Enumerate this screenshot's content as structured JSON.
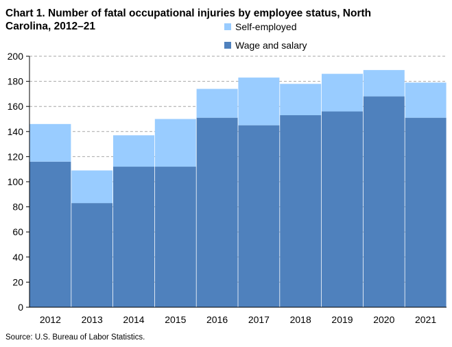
{
  "chart_data": {
    "type": "bar",
    "stacked": true,
    "title": "Chart 1. Number of fatal occupational injuries by employee status, North Carolina, 2012–21",
    "xlabel": "",
    "ylabel": "",
    "categories": [
      "2012",
      "2013",
      "2014",
      "2015",
      "2016",
      "2017",
      "2018",
      "2019",
      "2020",
      "2021"
    ],
    "series": [
      {
        "name": "Wage and salary",
        "color": "#4F81BD",
        "values": [
          116,
          83,
          112,
          112,
          151,
          145,
          153,
          156,
          168,
          151
        ]
      },
      {
        "name": "Self-employed",
        "color": "#99CCFF",
        "values": [
          30,
          26,
          25,
          38,
          23,
          38,
          25,
          30,
          21,
          28
        ]
      }
    ],
    "ylim": [
      0,
      200
    ],
    "yticks": [
      0,
      20,
      40,
      60,
      80,
      100,
      120,
      140,
      160,
      180,
      200
    ],
    "grid": true,
    "legend_position": "top-right"
  },
  "legend": {
    "items": [
      {
        "label": "Self-employed",
        "color": "#99CCFF"
      },
      {
        "label": "Wage and salary",
        "color": "#4F81BD"
      }
    ]
  },
  "source": "Source: U.S. Bureau of Labor Statistics."
}
